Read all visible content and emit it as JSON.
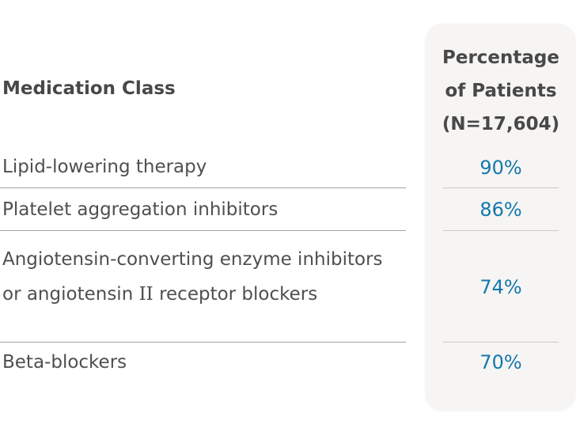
{
  "chart_data": {
    "type": "table",
    "title": "",
    "columns": [
      "Medication Class",
      "Percentage of Patients (N=17,604)"
    ],
    "rows": [
      [
        "Lipid-lowering therapy",
        "90%"
      ],
      [
        "Platelet aggregation inhibitors",
        "86%"
      ],
      [
        "Angiotensin-converting enzyme inhibitors or angiotensin II receptor blockers",
        "74%"
      ],
      [
        "Beta-blockers",
        "70%"
      ]
    ],
    "values_numeric": [
      90,
      86,
      74,
      70
    ],
    "n_total": "17,604",
    "layout_hints": {
      "value_column_style": "rounded light-gray card",
      "separators": "horizontal rules between rows",
      "value_alignment": "center"
    }
  },
  "table": {
    "header": {
      "medication_class": "Medication Class",
      "percentage_line_1": "Percentage",
      "percentage_line_2": "of Patients",
      "percentage_line_3": "(N=17,604)"
    },
    "rows": [
      {
        "label": "Lipid-lowering therapy",
        "value": "90%"
      },
      {
        "label": "Platelet aggregation inhibitors",
        "value": "86%"
      },
      {
        "label_pre": "Angiotensin-converting enzyme inhibitors or angiotensin ",
        "label_roman": "II",
        "label_post": " receptor blockers",
        "value": "74%"
      },
      {
        "label": "Beta-blockers",
        "value": "70%"
      }
    ]
  },
  "colors": {
    "accent_blue": "#1478ad",
    "text_dark": "#4f4f4f",
    "card_background": "#f6f5f3",
    "rule_left": "#a3a3a3",
    "rule_card": "#c9c9c9"
  }
}
